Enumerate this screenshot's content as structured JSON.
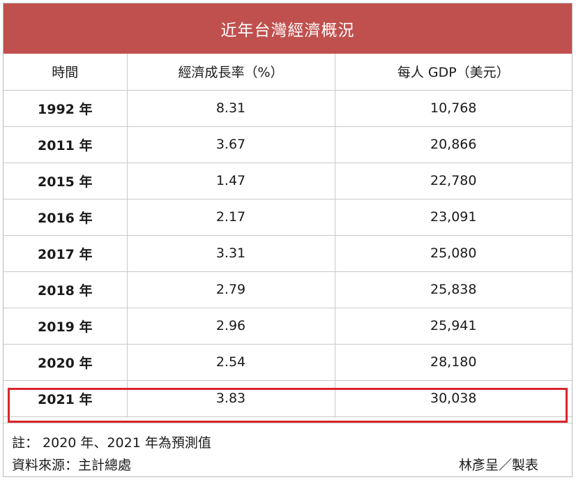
{
  "title": "近年台灣經濟概況",
  "headers": {
    "time": "時間",
    "growth": "經濟成長率（%）",
    "gdp": "每人 GDP（美元）"
  },
  "rows": [
    {
      "year": "1992 年",
      "growth": "8.31",
      "gdp": "10,768"
    },
    {
      "year": "2011 年",
      "growth": "3.67",
      "gdp": "20,866"
    },
    {
      "year": "2015 年",
      "growth": "1.47",
      "gdp": "22,780"
    },
    {
      "year": "2016 年",
      "growth": "2.17",
      "gdp": "23,091"
    },
    {
      "year": "2017 年",
      "growth": "3.31",
      "gdp": "25,080"
    },
    {
      "year": "2018 年",
      "growth": "2.79",
      "gdp": "25,838"
    },
    {
      "year": "2019 年",
      "growth": "2.96",
      "gdp": "25,941"
    },
    {
      "year": "2020 年",
      "growth": "2.54",
      "gdp": "28,180"
    },
    {
      "year": "2021 年",
      "growth": "3.83",
      "gdp": "30,038"
    }
  ],
  "notes": {
    "note": "註： 2020 年、2021 年為預測值",
    "source": "資料來源：主計總處",
    "maker": "林彥呈／製表"
  },
  "colors": {
    "title_bg": "#c0504d",
    "highlight": "#d9262b"
  }
}
